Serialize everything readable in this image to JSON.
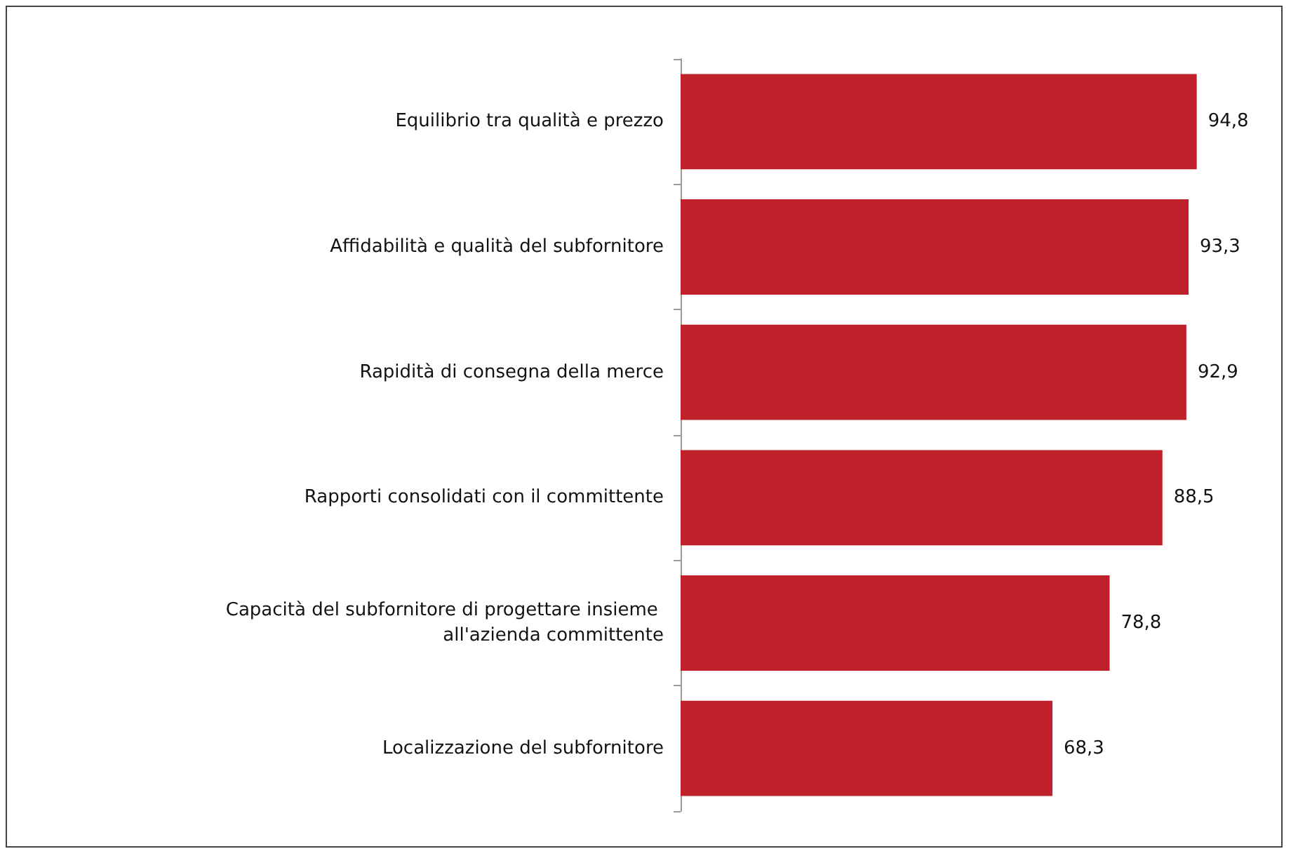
{
  "chart_data": {
    "type": "bar",
    "orientation": "horizontal",
    "categories": [
      "Equilibrio tra qualità e prezzo",
      "Affidabilità e qualità del subfornitore",
      "Rapidità di consegna della merce",
      "Rapporti consolidati con il committente",
      "Capacità del subfornitore di progettare insieme all'azienda committente",
      "Localizzazione del subfornitore"
    ],
    "values": [
      94.8,
      93.3,
      92.9,
      88.5,
      78.8,
      68.3
    ],
    "value_labels": [
      "94,8",
      "93,3",
      "92,9",
      "88,5",
      "78,8",
      "68,3"
    ],
    "color": "#c0202a",
    "tick_labels": "y"
  }
}
